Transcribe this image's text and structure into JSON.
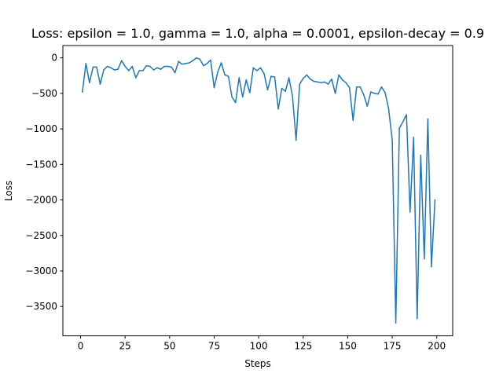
{
  "chart_data": {
    "type": "line",
    "title": "Loss: epsilon = 1.0, gamma = 1.0, alpha = 0.0001, epsilon-decay = 0.9",
    "xlabel": "Steps",
    "ylabel": "Loss",
    "xlim": [
      -9.95,
      208.95
    ],
    "ylim": [
      -3913,
      173
    ],
    "xticks": [
      0,
      25,
      50,
      75,
      100,
      125,
      150,
      175,
      200
    ],
    "yticks": [
      0,
      -500,
      -1000,
      -1500,
      -2000,
      -2500,
      -3000,
      -3500
    ],
    "grid": false,
    "series": [
      {
        "color": "#1f77b4",
        "x": [
          1,
          3,
          5,
          7,
          9,
          11,
          13,
          15,
          17,
          19,
          21,
          23,
          25,
          27,
          29,
          31,
          33,
          35,
          37,
          39,
          41,
          43,
          45,
          47,
          49,
          51,
          53,
          55,
          57,
          59,
          61,
          63,
          65,
          67,
          69,
          71,
          73,
          75,
          77,
          79,
          81,
          83,
          85,
          87,
          89,
          91,
          93,
          95,
          97,
          99,
          101,
          103,
          105,
          107,
          109,
          111,
          113,
          115,
          117,
          119,
          121,
          123,
          125,
          127,
          129,
          131,
          133,
          135,
          137,
          139,
          141,
          143,
          145,
          147,
          149,
          151,
          153,
          155,
          157,
          159,
          161,
          163,
          165,
          167,
          169,
          171,
          173,
          175,
          177,
          179,
          181,
          183,
          185,
          187,
          189,
          191,
          193,
          195,
          197,
          199
        ],
        "y": [
          -480,
          -80,
          -350,
          -130,
          -130,
          -370,
          -170,
          -120,
          -140,
          -170,
          -160,
          -40,
          -120,
          -180,
          -120,
          -280,
          -180,
          -180,
          -110,
          -120,
          -170,
          -140,
          -160,
          -120,
          -120,
          -130,
          -210,
          -50,
          -90,
          -80,
          -70,
          -40,
          0,
          -20,
          -110,
          -80,
          -30,
          -420,
          -200,
          -70,
          -240,
          -260,
          -550,
          -630,
          -280,
          -550,
          -310,
          -490,
          -140,
          -180,
          -140,
          -220,
          -450,
          -260,
          -270,
          -720,
          -430,
          -470,
          -280,
          -540,
          -1160,
          -370,
          -290,
          -240,
          -300,
          -330,
          -340,
          -350,
          -340,
          -370,
          -300,
          -500,
          -240,
          -310,
          -350,
          -420,
          -880,
          -410,
          -410,
          -520,
          -680,
          -480,
          -500,
          -510,
          -410,
          -490,
          -720,
          -1160,
          -3730,
          -990,
          -900,
          -800,
          -2170,
          -1120,
          -3670,
          -1370,
          -2830,
          -860,
          -2940,
          -2000
        ]
      }
    ]
  }
}
